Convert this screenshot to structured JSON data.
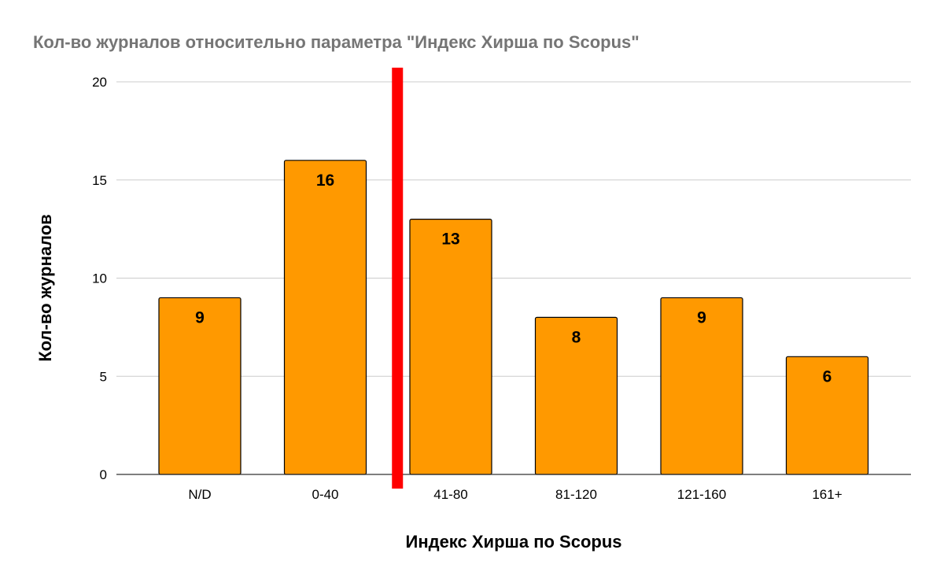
{
  "chart_data": {
    "type": "bar",
    "title": "Кол-во журналов относительно параметра \"Индекс Хирша по Scopus\"",
    "xlabel": "Индекс Хирша по Scopus",
    "ylabel": "Кол-во журналов",
    "categories": [
      "N/D",
      "0-40",
      "41-80",
      "81-120",
      "121-160",
      "161+"
    ],
    "values": [
      9,
      16,
      13,
      8,
      9,
      6
    ],
    "data_labels": [
      "9",
      "16",
      "13",
      "8",
      "9",
      "6"
    ],
    "ylim": [
      0,
      20
    ],
    "yticks": [
      "0",
      "5",
      "10",
      "15",
      "20"
    ],
    "grid": true,
    "legend": "none",
    "bar_color": "#ff9900",
    "bar_border_color": "#000000",
    "divider_line": {
      "between_categories": [
        "0-40",
        "41-80"
      ],
      "color": "#ff0000"
    }
  }
}
